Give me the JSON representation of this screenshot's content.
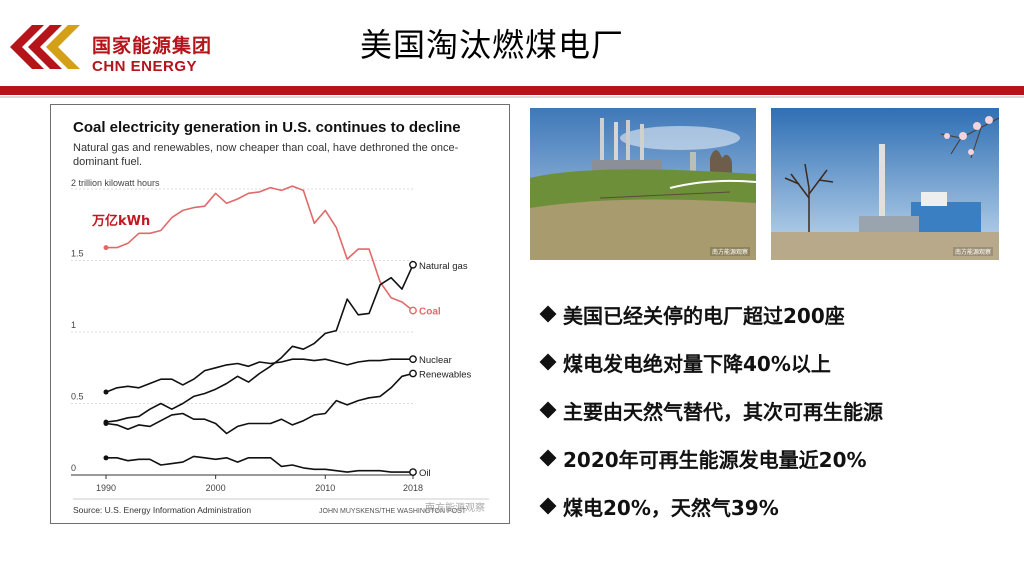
{
  "logo": {
    "name_cn": "国家能源集团",
    "name_en": "CHN ENERGY"
  },
  "slide_title": "美国淘汰燃煤电厂",
  "colors": {
    "brand": "#b4141a",
    "coal": "#e06a6a",
    "series": "#111111"
  },
  "chart_data": {
    "type": "line",
    "title": "Coal electricity generation in U.S. continues to decline",
    "subtitle": "Natural gas and renewables, now cheaper than coal, have dethroned the once-dominant fuel.",
    "unit_label": "2 trillion kilowatt hours",
    "annotation": "万亿kWh",
    "source": "Source: U.S. Energy Information Administration",
    "credit": "JOHN MUYSKENS/THE WASHINGTON POST",
    "watermark": "南方能源观察",
    "xlim": [
      1990,
      2018
    ],
    "ylim": [
      0,
      2
    ],
    "x_ticks": [
      1990,
      2000,
      2010,
      2018
    ],
    "y_ticks": [
      {
        "value": 0,
        "label": "0"
      },
      {
        "value": 0.5,
        "label": "0.5"
      },
      {
        "value": 1,
        "label": "1"
      },
      {
        "value": 1.5,
        "label": "1.5"
      }
    ],
    "x": [
      1990,
      1991,
      1992,
      1993,
      1994,
      1995,
      1996,
      1997,
      1998,
      1999,
      2000,
      2001,
      2002,
      2003,
      2004,
      2005,
      2006,
      2007,
      2008,
      2009,
      2010,
      2011,
      2012,
      2013,
      2014,
      2015,
      2016,
      2017,
      2018
    ],
    "series": [
      {
        "name": "Coal",
        "color": "#e06a6a",
        "values": [
          1.59,
          1.59,
          1.62,
          1.69,
          1.69,
          1.71,
          1.8,
          1.85,
          1.87,
          1.88,
          1.97,
          1.9,
          1.93,
          1.97,
          1.98,
          2.01,
          1.99,
          2.02,
          1.99,
          1.76,
          1.85,
          1.73,
          1.51,
          1.58,
          1.58,
          1.35,
          1.24,
          1.21,
          1.15
        ]
      },
      {
        "name": "Natural gas",
        "color": "#111111",
        "values": [
          0.37,
          0.38,
          0.4,
          0.41,
          0.46,
          0.5,
          0.46,
          0.5,
          0.55,
          0.57,
          0.6,
          0.64,
          0.69,
          0.65,
          0.71,
          0.76,
          0.82,
          0.9,
          0.88,
          0.92,
          0.99,
          1.01,
          1.23,
          1.12,
          1.13,
          1.33,
          1.38,
          1.3,
          1.47
        ]
      },
      {
        "name": "Nuclear",
        "color": "#111111",
        "values": [
          0.58,
          0.61,
          0.62,
          0.61,
          0.64,
          0.67,
          0.67,
          0.63,
          0.67,
          0.73,
          0.75,
          0.77,
          0.78,
          0.76,
          0.79,
          0.78,
          0.79,
          0.81,
          0.81,
          0.8,
          0.81,
          0.79,
          0.77,
          0.79,
          0.8,
          0.8,
          0.81,
          0.81,
          0.81
        ]
      },
      {
        "name": "Renewables",
        "color": "#111111",
        "values": [
          0.36,
          0.35,
          0.32,
          0.35,
          0.34,
          0.38,
          0.42,
          0.43,
          0.39,
          0.39,
          0.36,
          0.29,
          0.34,
          0.36,
          0.36,
          0.36,
          0.39,
          0.35,
          0.38,
          0.42,
          0.43,
          0.52,
          0.49,
          0.52,
          0.54,
          0.55,
          0.61,
          0.69,
          0.71
        ]
      },
      {
        "name": "Oil",
        "color": "#111111",
        "values": [
          0.12,
          0.12,
          0.1,
          0.11,
          0.11,
          0.07,
          0.08,
          0.09,
          0.13,
          0.12,
          0.11,
          0.12,
          0.09,
          0.12,
          0.12,
          0.12,
          0.06,
          0.07,
          0.05,
          0.04,
          0.04,
          0.03,
          0.02,
          0.03,
          0.03,
          0.03,
          0.02,
          0.02,
          0.02
        ]
      }
    ],
    "end_labels": [
      {
        "series": "Natural gas",
        "text": "Natural gas"
      },
      {
        "series": "Coal",
        "text": "Coal"
      },
      {
        "series": "Nuclear",
        "text": "Nuclear"
      },
      {
        "series": "Renewables",
        "text": "Renewables"
      },
      {
        "series": "Oil",
        "text": "Oil"
      }
    ]
  },
  "photos": [
    {
      "name": "coal-plant-photo-1",
      "watermark": "南方能源观察"
    },
    {
      "name": "coal-plant-photo-2",
      "watermark": "南方能源观察"
    }
  ],
  "bullets": [
    "美国已经关停的电厂超过200座",
    "煤电发电绝对量下降40%以上",
    "主要由天然气替代，其次可再生能源",
    "2020年可再生能源发电量近20%",
    "煤电20%，天然气39%"
  ]
}
